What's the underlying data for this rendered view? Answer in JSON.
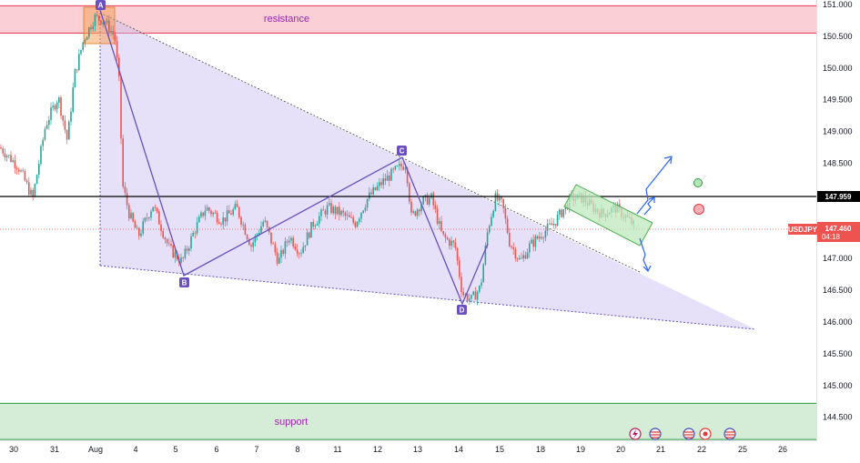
{
  "chart_data": {
    "type": "candlestick",
    "symbol": "USDJPY",
    "current_price": "147.460",
    "countdown": "04:18",
    "reference_line": "147.959",
    "y_range": [
      143.9,
      151.1
    ],
    "y_ticks": [
      "151.000",
      "150.500",
      "150.000",
      "149.500",
      "149.000",
      "148.500",
      "148.000",
      "147.500",
      "147.000",
      "146.500",
      "146.000",
      "145.500",
      "145.000",
      "144.500"
    ],
    "x_ticks": [
      "30",
      "31",
      "Aug",
      "4",
      "5",
      "6",
      "7",
      "8",
      "11",
      "12",
      "13",
      "14",
      "15",
      "18",
      "19",
      "20",
      "21",
      "22",
      "25",
      "26"
    ],
    "zones": {
      "resistance": {
        "label": "resistance",
        "from": 150.55,
        "to": 150.98
      },
      "support": {
        "label": "support",
        "from": 144.15,
        "to": 144.72
      }
    },
    "pattern_points": [
      {
        "label": "A",
        "x": 25.0,
        "price": 150.9
      },
      {
        "label": "B",
        "x": 27.0,
        "price": 146.75
      },
      {
        "label": "C",
        "x": 31.6,
        "price": 148.58
      },
      {
        "label": "D",
        "x": 33.4,
        "price": 146.22
      }
    ],
    "colors": {
      "up": "#26a69a",
      "down": "#ef5350",
      "pattern": "#6a4fc2",
      "triangle_fill": "#c8bdf0",
      "resistance_fill": "#fbcfd6",
      "resistance_line": "#e8344c",
      "support_fill": "#d5ecd7",
      "support_line": "#2e9c44",
      "channel_fill": "#bde8bd",
      "arrow": "#2962ff"
    },
    "icons": [
      "lightning-event-icon",
      "us-flag-icon",
      "us-flag-icon",
      "record-event-icon",
      "us-flag-icon"
    ]
  }
}
